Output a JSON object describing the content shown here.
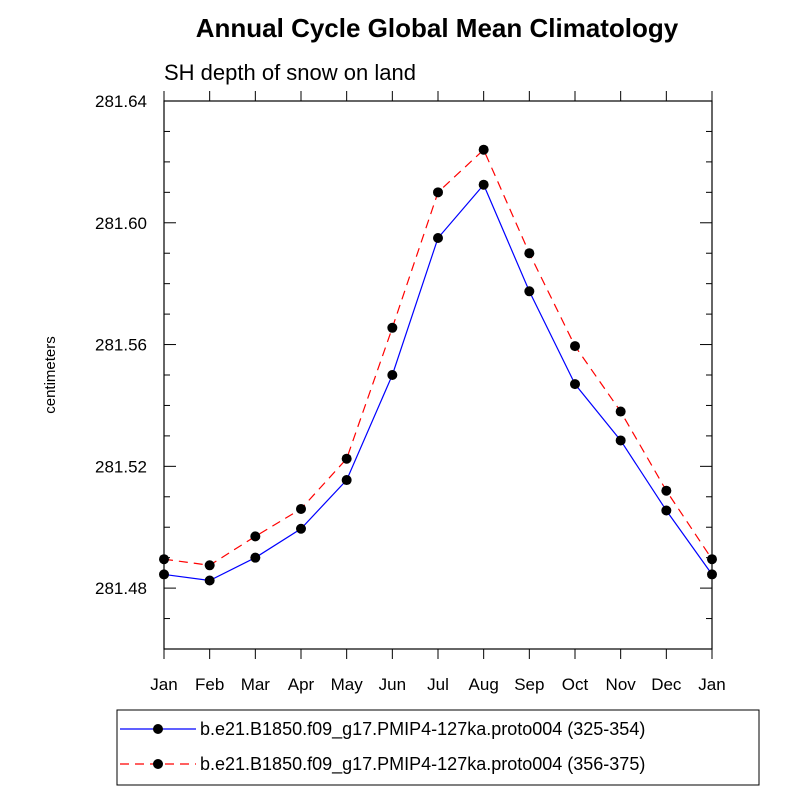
{
  "chart_data": {
    "type": "line",
    "title": "Annual Cycle Global Mean Climatology",
    "subtitle": "SH depth of snow on land",
    "xlabel": "",
    "ylabel": "centimeters",
    "categories": [
      "Jan",
      "Feb",
      "Mar",
      "Apr",
      "May",
      "Jun",
      "Jul",
      "Aug",
      "Sep",
      "Oct",
      "Nov",
      "Dec",
      "Jan"
    ],
    "ylim": [
      281.46,
      281.64
    ],
    "yticks": [
      281.48,
      281.52,
      281.56,
      281.6,
      281.64
    ],
    "ytick_labels": [
      "281.48",
      "281.52",
      "281.56",
      "281.60",
      "281.64"
    ],
    "grid": false,
    "legend_position": "bottom",
    "series": [
      {
        "name": "b.e21.B1850.f09_g17.PMIP4-127ka.proto004 (325-354)",
        "color": "#0000ff",
        "dash": "solid",
        "values": [
          281.4845,
          281.4825,
          281.49,
          281.4995,
          281.5155,
          281.55,
          281.595,
          281.6125,
          281.5775,
          281.547,
          281.5285,
          281.5055,
          281.4845
        ]
      },
      {
        "name": "b.e21.B1850.f09_g17.PMIP4-127ka.proto004 (356-375)",
        "color": "#ff0000",
        "dash": "dashed",
        "values": [
          281.4895,
          281.4875,
          281.497,
          281.506,
          281.5225,
          281.5655,
          281.61,
          281.624,
          281.59,
          281.5595,
          281.538,
          281.512,
          281.4895
        ]
      }
    ]
  }
}
